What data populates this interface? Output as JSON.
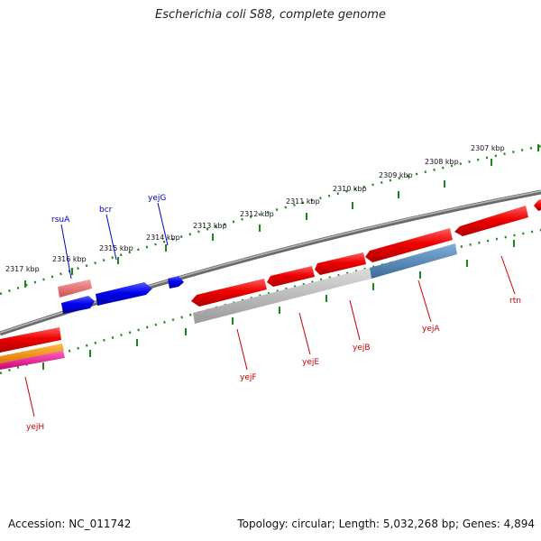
{
  "title": "Escherichia coli S88, complete genome",
  "footer": {
    "accession": "Accession: NC_011742",
    "stats": "Topology: circular; Length: 5,032,268 bp; Genes: 4,894"
  },
  "colors": {
    "backbone": "#808080",
    "tick": "#1a8a1a",
    "gene_blue": "#0000ee",
    "gene_red": "#ee0000",
    "label_blue": "#0000cc",
    "label_red": "#cc0000",
    "salmon": "#e87070",
    "orange": "#ee8800",
    "magenta": "#ee1188",
    "grey_bar": "#aaaaaa",
    "steel_bar": "#4a80b0"
  },
  "ticks": [
    {
      "label": "2307 kbp"
    },
    {
      "label": "2308 kbp"
    },
    {
      "label": "2309 kbp"
    },
    {
      "label": "2310 kbp"
    },
    {
      "label": "2311 kbp"
    },
    {
      "label": "2312 kbp"
    },
    {
      "label": "2313 kbp"
    },
    {
      "label": "2314 kbp"
    },
    {
      "label": "2315 kbp"
    },
    {
      "label": "2316 kbp"
    },
    {
      "label": "2317 kbp"
    }
  ],
  "genes_top": [
    {
      "name": "rsuA"
    },
    {
      "name": "bcr"
    },
    {
      "name": "yejG"
    }
  ],
  "genes_bottom": [
    {
      "name": "yejF"
    },
    {
      "name": "yejE"
    },
    {
      "name": "yejB"
    },
    {
      "name": "yejA"
    },
    {
      "name": "rtn"
    },
    {
      "name": "yejH"
    }
  ]
}
